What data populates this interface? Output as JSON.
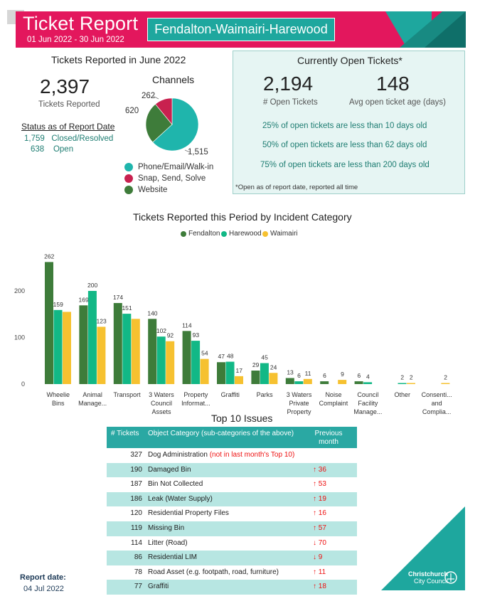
{
  "header": {
    "title": "Ticket Report",
    "dates": "01 Jun 2022 - 30 Jun 2022",
    "ward": "Fendalton-Waimairi-Harewood"
  },
  "reported": {
    "section_title": "Tickets Reported in June 2022",
    "total": "2,397",
    "total_label": "Tickets Reported",
    "status_title": "Status as of Report Date",
    "closed_value": "1,759",
    "closed_label": "Closed/Resolved",
    "open_value": "638",
    "open_label": "Open"
  },
  "channels": {
    "title": "Channels",
    "slices": [
      {
        "name": "Phone/Email/Walk-in",
        "value": 1515,
        "label": "1,515",
        "color": "#1fb5ac"
      },
      {
        "name": "Snap, Send, Solve",
        "value": 262,
        "label": "262",
        "color": "#c8214f"
      },
      {
        "name": "Website",
        "value": 620,
        "label": "620",
        "color": "#3e7c3a"
      }
    ]
  },
  "open_tickets": {
    "title": "Currently Open Tickets*",
    "count": "2,194",
    "count_label": "# Open Tickets",
    "avg_age": "148",
    "avg_age_label": "Avg open ticket age (days)",
    "pct_lines": [
      "25% of open tickets are less than 10 days old",
      "50% of open tickets are less than 62 days old",
      "75% of open tickets are less than 200 days old"
    ],
    "footnote": "*Open as of report date, reported all time"
  },
  "chart_data": {
    "type": "bar",
    "title": "Tickets Reported this Period by Incident Category",
    "categories": [
      [
        "Wheelie",
        "Bins"
      ],
      [
        "Animal",
        "Manage..."
      ],
      [
        "Transport"
      ],
      [
        "3 Waters",
        "Council",
        "Assets"
      ],
      [
        "Property",
        "Informat..."
      ],
      [
        "Graffiti"
      ],
      [
        "Parks"
      ],
      [
        "3 Waters",
        "Private",
        "Property"
      ],
      [
        "Noise",
        "Complaint"
      ],
      [
        "Council",
        "Facility",
        "Manage..."
      ],
      [
        "Other"
      ],
      [
        "Consenti...",
        "and",
        "Complia..."
      ]
    ],
    "series": [
      {
        "name": "Fendalton",
        "color": "#3e7c3a",
        "values": [
          262,
          169,
          174,
          140,
          114,
          47,
          29,
          13,
          6,
          6,
          null,
          null
        ]
      },
      {
        "name": "Harewood",
        "color": "#12b886",
        "values": [
          159,
          200,
          151,
          102,
          93,
          48,
          45,
          6,
          null,
          4,
          2,
          null
        ]
      },
      {
        "name": "Waimairi",
        "color": "#f6c130",
        "values": [
          155,
          123,
          140,
          92,
          54,
          17,
          24,
          11,
          9,
          null,
          2,
          2
        ]
      }
    ],
    "data_labels": [
      [
        "262",
        "169",
        "174",
        "140",
        "114",
        "47",
        "29",
        "13",
        "6",
        "6",
        "",
        ""
      ],
      [
        "159",
        "200",
        "151",
        "102",
        "93",
        "48",
        "45",
        "6",
        "",
        "4",
        "2",
        ""
      ],
      [
        "",
        "123",
        "",
        "92",
        "54",
        "17",
        "24",
        "11",
        "9",
        "",
        "2",
        "2"
      ]
    ],
    "yticks": [
      0,
      100,
      200
    ],
    "ylim": [
      0,
      280
    ],
    "legend_position": "top-center",
    "grid": false
  },
  "top10": {
    "title": "Top 10 Issues",
    "headers": [
      "# Tickets",
      "Object Category (sub-categories of the above)",
      "Previous month"
    ],
    "rows": [
      {
        "count": "327",
        "category": "Dog Administration",
        "note": "(not in last month's Top 10)",
        "arrow": "",
        "prev": ""
      },
      {
        "count": "190",
        "category": "Damaged Bin",
        "note": "",
        "arrow": "↑",
        "prev": "36"
      },
      {
        "count": "187",
        "category": "Bin Not Collected",
        "note": "",
        "arrow": "↑",
        "prev": "53"
      },
      {
        "count": "186",
        "category": "Leak (Water Supply)",
        "note": "",
        "arrow": "↑",
        "prev": "19"
      },
      {
        "count": "120",
        "category": "Residential Property Files",
        "note": "",
        "arrow": "↑",
        "prev": "16"
      },
      {
        "count": "119",
        "category": "Missing Bin",
        "note": "",
        "arrow": "↑",
        "prev": "57"
      },
      {
        "count": "114",
        "category": "Litter (Road)",
        "note": "",
        "arrow": "↓",
        "prev": "70"
      },
      {
        "count": "86",
        "category": "Residential LIM",
        "note": "",
        "arrow": "↓",
        "prev": "9"
      },
      {
        "count": "78",
        "category": "Road Asset (e.g. footpath, road, furniture)",
        "note": "",
        "arrow": "↑",
        "prev": "11"
      },
      {
        "count": "77",
        "category": "Graffiti",
        "note": "",
        "arrow": "↑",
        "prev": "18"
      }
    ]
  },
  "footer": {
    "report_date_label": "Report date:",
    "report_date": "04 Jul 2022",
    "logo_line1": "Christchurch",
    "logo_line2": "City Council"
  }
}
